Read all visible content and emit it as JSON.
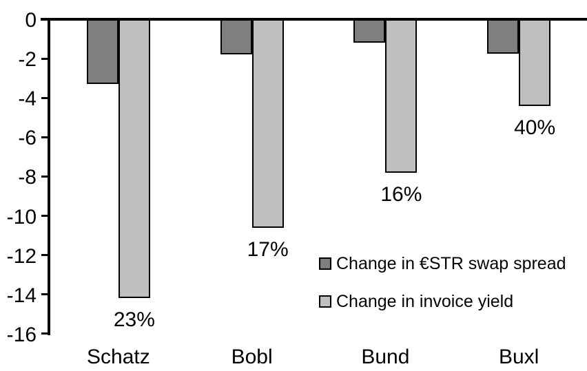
{
  "chart_data": {
    "type": "bar",
    "title": "",
    "xlabel": "",
    "ylabel": "",
    "categories": [
      "Schatz",
      "Bobl",
      "Bund",
      "Buxl"
    ],
    "series": [
      {
        "name": "Change in €STR swap spread",
        "color": "#7F7F7F",
        "values": [
          -3.3,
          -1.8,
          -1.2,
          -1.75
        ]
      },
      {
        "name": "Change in invoice yield",
        "color": "#BFBFBF",
        "values": [
          -14.2,
          -10.6,
          -7.8,
          -4.4
        ],
        "point_labels": [
          "23%",
          "17%",
          "16%",
          "40%"
        ]
      }
    ],
    "ylim": [
      -16,
      0
    ],
    "y_ticks": [
      0,
      -2,
      -4,
      -6,
      -8,
      -10,
      -12,
      -14,
      -16
    ],
    "grid": false,
    "legend_position": "inside-right",
    "axis_color": "#000000",
    "bar_border_color": "#000000"
  }
}
